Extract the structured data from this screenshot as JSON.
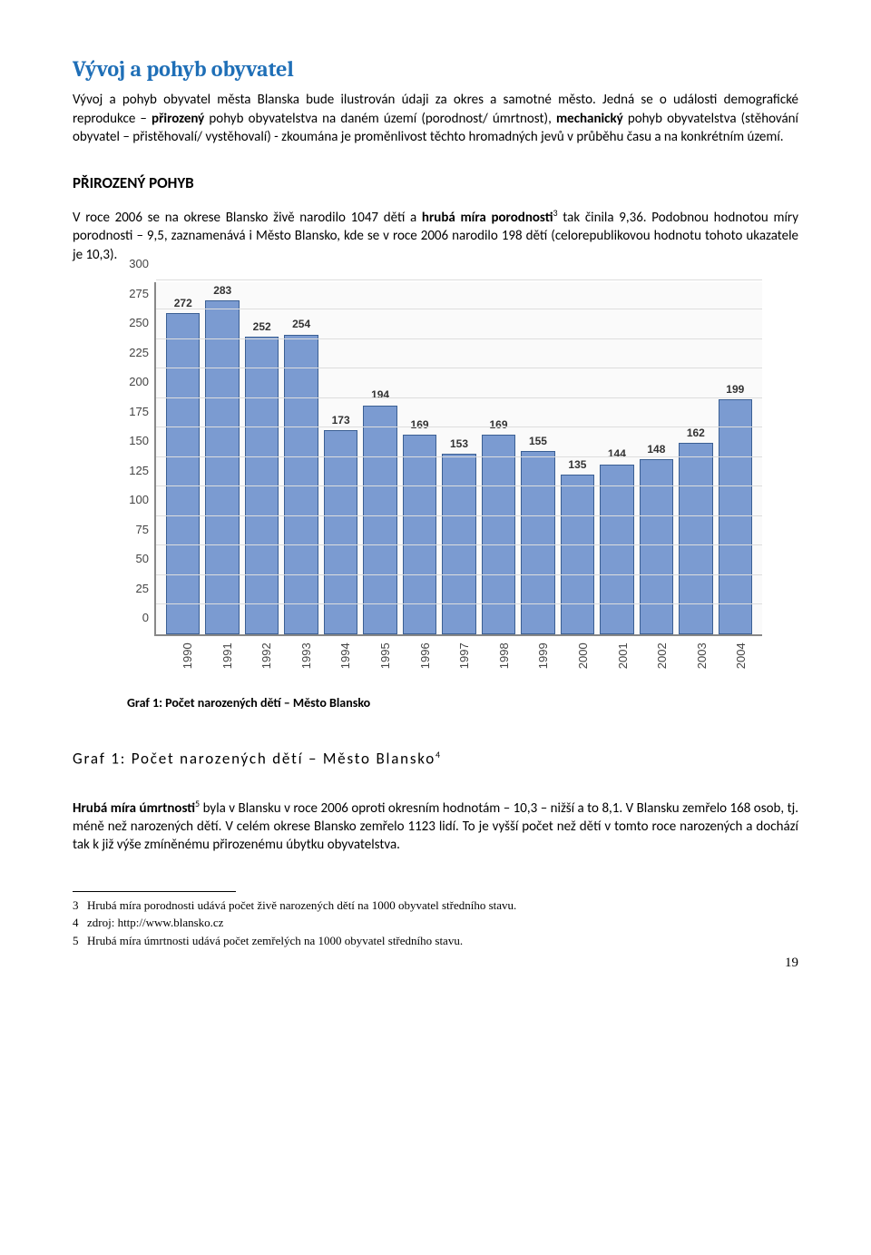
{
  "title": "Vývoj a pohyb obyvatel",
  "intro1": "Vývoj a pohyb obyvatel města Blanska bude ilustrován údaji za okres a samotné město. Jedná se o události demografické reprodukce – ",
  "intro1_b1": "přirozený",
  "intro1_mid": " pohyb obyvatelstva na daném území (porodnost/ úmrtnost), ",
  "intro1_b2": "mechanický",
  "intro1_end": " pohyb obyvatelstva (stěhování obyvatel – přistěhovalí/ vystěhovalí) - zkoumána je proměnlivost těchto hromadných jevů v průběhu času a na konkrétním území.",
  "section1": "PŘIROZENÝ POHYB",
  "para2_a": "V roce 2006 se na okrese Blansko živě narodilo 1047 dětí a ",
  "para2_b": "hrubá míra porodnosti",
  "para2_sup1": "3",
  "para2_c": " tak činila 9,36. Podobnou hodnotou míry porodnosti – 9,5, zaznamenává i Město Blansko, kde se v roce 2006 narodilo 198 dětí (celorepublikovou hodnotu tohoto ukazatele je  10,3).",
  "chart": {
    "type": "bar",
    "years": [
      "1990",
      "1991",
      "1992",
      "1993",
      "1994",
      "1995",
      "1996",
      "1997",
      "1998",
      "1999",
      "2000",
      "2001",
      "2002",
      "2003",
      "2004"
    ],
    "values": [
      272,
      283,
      252,
      254,
      173,
      194,
      169,
      153,
      169,
      155,
      135,
      144,
      148,
      162,
      199
    ],
    "bar_fill": "#7b9bd1",
    "bar_border": "#3b5f93",
    "bg": "#fafafa",
    "grid_color": "#dddddd",
    "y_ticks": [
      0,
      25,
      50,
      75,
      100,
      125,
      150,
      175,
      200,
      225,
      250,
      275,
      300
    ],
    "y_max": 300
  },
  "caption": "Graf 1: Počet narozených dětí – Město Blansko",
  "graf_title_text": "Graf 1: Počet narozených dětí – Město Blansko",
  "graf_title_sup": "4",
  "para3_a": "Hrubá míra úmrtnosti",
  "para3_sup": "5",
  "para3_b": " byla v Blansku v roce 2006 oproti okresním hodnotám – 10,3 – nižší a to 8,1. V Blansku zemřelo 168 osob, tj. méně než narozených dětí. V celém okrese Blansko zemřelo 1123 lidí. To je vyšší počet než dětí v tomto roce narozených a dochází tak k již výše zmíněnému přirozenému úbytku obyvatelstva.",
  "footnotes": [
    {
      "n": "3",
      "t": "Hrubá míra porodnosti udává počet živě narozených dětí na 1000 obyvatel středního stavu."
    },
    {
      "n": "4",
      "t": "zdroj: http://www.blansko.cz"
    },
    {
      "n": "5",
      "t": "Hrubá míra úmrtnosti udává počet zemřelých na 1000 obyvatel středního stavu."
    }
  ],
  "page_number": "19"
}
